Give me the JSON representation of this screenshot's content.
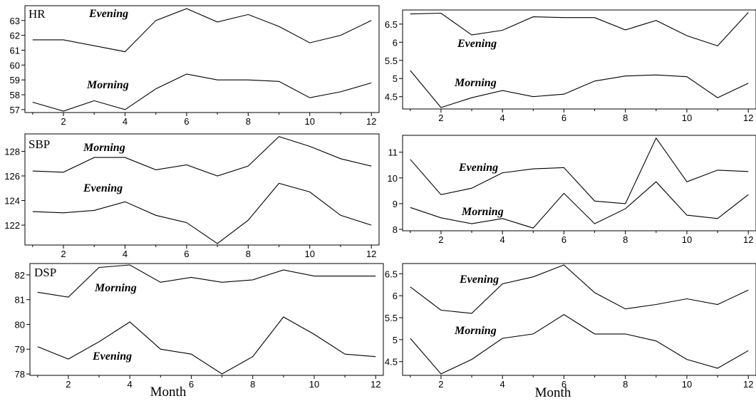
{
  "chart_data": [
    {
      "type": "line",
      "title": "HR",
      "x": [
        1,
        2,
        3,
        4,
        5,
        6,
        7,
        8,
        9,
        10,
        11,
        12
      ],
      "xticks": [
        2,
        4,
        6,
        8,
        10,
        12
      ],
      "ylim": [
        56.9,
        63.9
      ],
      "yticks": [
        57,
        58,
        59,
        60,
        61,
        62,
        63
      ],
      "series": [
        {
          "name": "Evening",
          "values": [
            61.7,
            61.7,
            61.3,
            60.9,
            63.0,
            63.8,
            62.9,
            63.4,
            62.6,
            61.5,
            62.0,
            63.0
          ]
        },
        {
          "name": "Morning",
          "values": [
            57.5,
            56.9,
            57.6,
            57.0,
            58.4,
            59.4,
            59.0,
            59.0,
            58.9,
            57.8,
            58.2,
            58.8
          ]
        }
      ]
    },
    {
      "type": "line",
      "title": "",
      "x": [
        1,
        2,
        3,
        4,
        5,
        6,
        7,
        8,
        9,
        10,
        11,
        12
      ],
      "xticks": [
        2,
        4,
        6,
        8,
        10,
        12
      ],
      "ylim": [
        4.2,
        6.85
      ],
      "yticks": [
        4.5,
        5,
        5.5,
        6,
        6.5
      ],
      "ytick_labels": [
        "4.5",
        "5",
        "5.5",
        "6",
        "6.5"
      ],
      "series": [
        {
          "name": "Evening",
          "values": [
            6.78,
            6.8,
            6.2,
            6.33,
            6.7,
            6.68,
            6.68,
            6.34,
            6.6,
            6.18,
            5.9,
            6.82
          ]
        },
        {
          "name": "Morning",
          "values": [
            5.22,
            4.2,
            4.47,
            4.67,
            4.5,
            4.57,
            4.93,
            5.07,
            5.1,
            5.05,
            4.47,
            4.87
          ]
        }
      ]
    },
    {
      "type": "line",
      "title": "SBP",
      "x": [
        1,
        2,
        3,
        4,
        5,
        6,
        7,
        8,
        9,
        10,
        11,
        12
      ],
      "xticks": [
        2,
        4,
        6,
        8,
        10,
        12
      ],
      "ylim": [
        120.5,
        129.3
      ],
      "yticks": [
        122,
        124,
        126,
        128
      ],
      "series": [
        {
          "name": "Morning",
          "values": [
            126.4,
            126.3,
            127.5,
            127.5,
            126.5,
            126.9,
            126.0,
            126.8,
            129.2,
            128.4,
            127.4,
            126.8
          ]
        },
        {
          "name": "Evening",
          "values": [
            123.1,
            123.0,
            123.2,
            123.9,
            122.8,
            122.2,
            120.5,
            122.4,
            125.4,
            124.7,
            122.8,
            122.0
          ]
        }
      ]
    },
    {
      "type": "line",
      "title": "",
      "x": [
        1,
        2,
        3,
        4,
        5,
        6,
        7,
        8,
        9,
        10,
        11,
        12
      ],
      "xticks": [
        2,
        4,
        6,
        8,
        10,
        12
      ],
      "ylim": [
        8.0,
        11.6
      ],
      "yticks": [
        8,
        9,
        10,
        11
      ],
      "series": [
        {
          "name": "Evening",
          "values": [
            10.72,
            9.35,
            9.6,
            10.2,
            10.35,
            10.4,
            9.1,
            9.0,
            11.55,
            9.85,
            10.3,
            10.25
          ]
        },
        {
          "name": "Morning",
          "values": [
            8.85,
            8.45,
            8.22,
            8.42,
            8.05,
            9.4,
            8.22,
            8.8,
            9.85,
            8.55,
            8.42,
            9.35
          ]
        }
      ]
    },
    {
      "type": "line",
      "title": "DSP",
      "x": [
        1,
        2,
        3,
        4,
        5,
        6,
        7,
        8,
        9,
        10,
        11,
        12
      ],
      "xticks": [
        2,
        4,
        6,
        8,
        10,
        12
      ],
      "xlabel": "Month",
      "ylim": [
        78.0,
        82.4
      ],
      "yticks": [
        78,
        79,
        80,
        81,
        82
      ],
      "series": [
        {
          "name": "Morning",
          "values": [
            81.3,
            81.1,
            82.3,
            82.4,
            81.7,
            81.9,
            81.7,
            81.8,
            82.2,
            81.95,
            81.95,
            81.95
          ]
        },
        {
          "name": "Evening",
          "values": [
            79.1,
            78.6,
            79.3,
            80.1,
            79.0,
            78.8,
            78.0,
            78.7,
            80.3,
            79.6,
            78.8,
            78.7
          ]
        }
      ]
    },
    {
      "type": "line",
      "title": "",
      "x": [
        1,
        2,
        3,
        4,
        5,
        6,
        7,
        8,
        9,
        10,
        11,
        12
      ],
      "xticks": [
        2,
        4,
        6,
        8,
        10,
        12
      ],
      "xlabel": "Month",
      "ylim": [
        4.22,
        6.7
      ],
      "yticks": [
        4.5,
        5,
        5.5,
        6,
        6.5
      ],
      "ytick_labels": [
        "4.5",
        "5",
        "5.5",
        "6",
        "6.5"
      ],
      "series": [
        {
          "name": "Evening",
          "values": [
            6.2,
            5.67,
            5.6,
            6.27,
            6.43,
            6.7,
            6.07,
            5.7,
            5.8,
            5.93,
            5.8,
            6.13
          ]
        },
        {
          "name": "Morning",
          "values": [
            5.03,
            4.22,
            4.55,
            5.03,
            5.13,
            5.57,
            5.13,
            5.13,
            4.97,
            4.55,
            4.35,
            4.75
          ]
        }
      ]
    }
  ]
}
